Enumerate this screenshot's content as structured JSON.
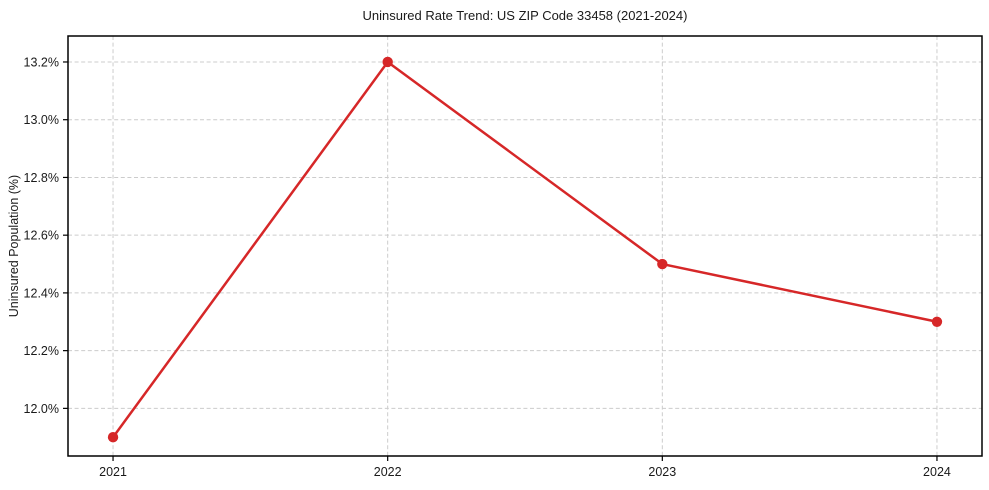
{
  "figure": {
    "title": "Uninsured Rate Trend: US ZIP Code 33458 (2021-2024)",
    "ylabel": "Uninsured Population (%)"
  },
  "chart_data": {
    "type": "line",
    "title": "Uninsured Rate Trend: US ZIP Code 33458 (2021-2024)",
    "xlabel": "",
    "ylabel": "Uninsured Population (%)",
    "x": [
      2021,
      2022,
      2023,
      2024
    ],
    "values": [
      11.9,
      13.2,
      12.5,
      12.3
    ],
    "x_tick_labels": [
      "2021",
      "2022",
      "2023",
      "2024"
    ],
    "y_ticks": [
      12.0,
      12.2,
      12.4,
      12.6,
      12.8,
      13.0,
      13.2
    ],
    "y_tick_labels": [
      "12.0%",
      "12.2%",
      "12.4%",
      "12.6%",
      "12.8%",
      "13.0%",
      "13.2%"
    ],
    "xlim": [
      2020.836,
      2024.164
    ],
    "ylim": [
      11.835,
      13.29
    ],
    "grid": true,
    "grid_style": "dashed",
    "legend": false,
    "colors": {
      "line": "#d62728",
      "marker": "#d62728",
      "grid": "#cccccc",
      "axis": "#000000",
      "text": "#1a1a1a",
      "background": "#ffffff"
    }
  }
}
